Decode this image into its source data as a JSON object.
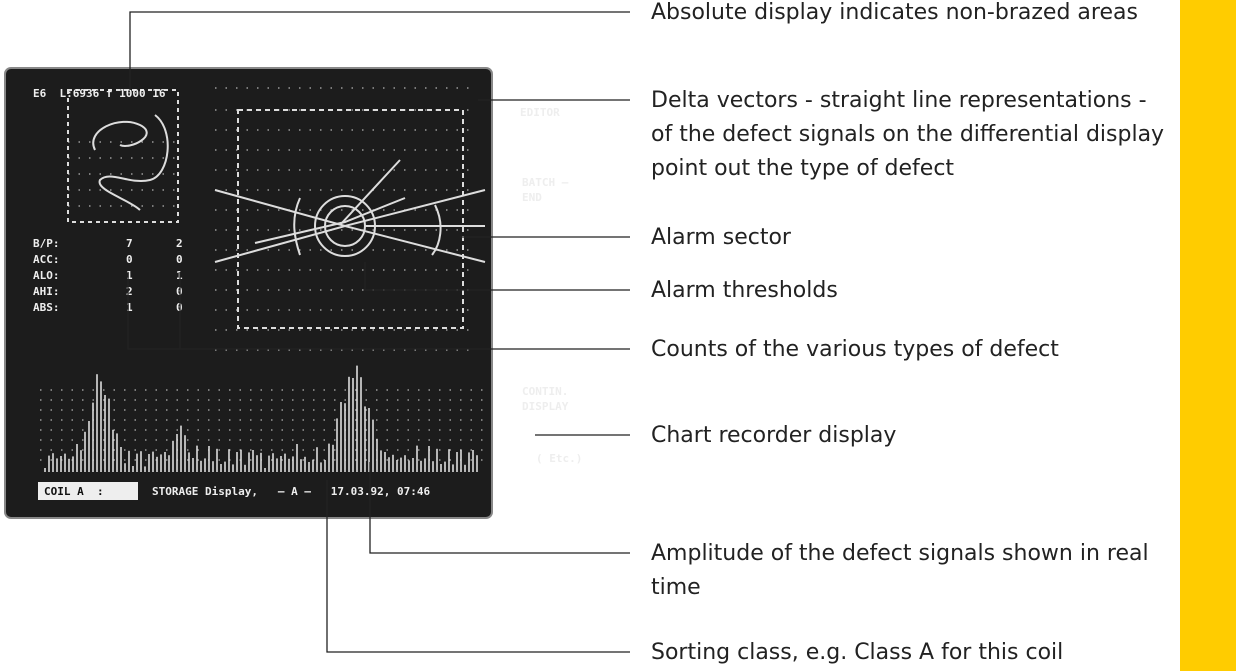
{
  "screen": {
    "header": "E6  L:6936 f 1000 16",
    "menu": [
      "EDITOR",
      "BATCH –",
      "END",
      "CONTIN.",
      "DISPLAY",
      "( Etc.)"
    ],
    "counts": [
      [
        "B/P:",
        "7",
        "2"
      ],
      [
        "ACC:",
        "0",
        "0"
      ],
      [
        "ALO:",
        "1",
        "1"
      ],
      [
        "AHI:",
        "2",
        "0"
      ],
      [
        "ABS:",
        "1",
        "0"
      ]
    ],
    "status": {
      "coil": "COIL A  :",
      "text": "STORAGE Display,   — A —   17.03.92, 07:46"
    }
  },
  "callouts": [
    {
      "lines": [
        "Absolute display indicates non-brazed areas"
      ]
    },
    {
      "lines": [
        "Delta vectors - straight line representations -",
        "of the defect signals on the differential display",
        "point out the type of defect"
      ]
    },
    {
      "lines": [
        "Alarm sector"
      ]
    },
    {
      "lines": [
        "Alarm thresholds"
      ]
    },
    {
      "lines": [
        "Counts of the various types of defect"
      ]
    },
    {
      "lines": [
        "Chart recorder display"
      ]
    },
    {
      "lines": [
        "Amplitude of the defect signals shown in real",
        "time"
      ]
    },
    {
      "lines": [
        "Sorting class, e.g. Class A for this coil"
      ]
    }
  ]
}
